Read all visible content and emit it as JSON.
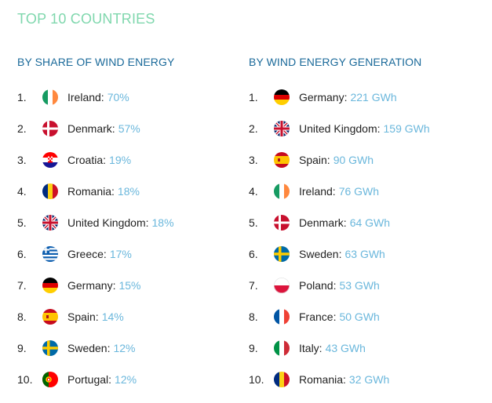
{
  "title": "TOP 10 COUNTRIES",
  "share": {
    "heading": "BY SHARE OF WIND ENERGY",
    "items": [
      {
        "rank": "1.",
        "country": "Ireland:",
        "value": "70%",
        "flag": "ireland"
      },
      {
        "rank": "2.",
        "country": "Denmark:",
        "value": "57%",
        "flag": "denmark"
      },
      {
        "rank": "3.",
        "country": "Croatia:",
        "value": "19%",
        "flag": "croatia"
      },
      {
        "rank": "4.",
        "country": "Romania:",
        "value": "18%",
        "flag": "romania"
      },
      {
        "rank": "5.",
        "country": "United Kingdom:",
        "value": "18%",
        "flag": "uk"
      },
      {
        "rank": "6.",
        "country": "Greece:",
        "value": "17%",
        "flag": "greece"
      },
      {
        "rank": "7.",
        "country": "Germany:",
        "value": "15%",
        "flag": "germany"
      },
      {
        "rank": "8.",
        "country": "Spain:",
        "value": "14%",
        "flag": "spain"
      },
      {
        "rank": "9.",
        "country": "Sweden:",
        "value": "12%",
        "flag": "sweden"
      },
      {
        "rank": "10.",
        "country": "Portugal:",
        "value": "12%",
        "flag": "portugal"
      }
    ]
  },
  "generation": {
    "heading": "BY WIND ENERGY GENERATION",
    "items": [
      {
        "rank": "1.",
        "country": "Germany:",
        "value": "221 GWh",
        "flag": "germany"
      },
      {
        "rank": "2.",
        "country": "United Kingdom:",
        "value": "159 GWh",
        "flag": "uk"
      },
      {
        "rank": "3.",
        "country": "Spain:",
        "value": "90 GWh",
        "flag": "spain"
      },
      {
        "rank": "4.",
        "country": "Ireland:",
        "value": "76 GWh",
        "flag": "ireland"
      },
      {
        "rank": "5.",
        "country": "Denmark:",
        "value": "64 GWh",
        "flag": "denmark"
      },
      {
        "rank": "6.",
        "country": "Sweden:",
        "value": "63 GWh",
        "flag": "sweden"
      },
      {
        "rank": "7.",
        "country": "Poland:",
        "value": "53 GWh",
        "flag": "poland"
      },
      {
        "rank": "8.",
        "country": "France:",
        "value": "50 GWh",
        "flag": "france"
      },
      {
        "rank": "9.",
        "country": "Italy:",
        "value": "43 GWh",
        "flag": "italy"
      },
      {
        "rank": "10.",
        "country": "Romania:",
        "value": "32 GWh",
        "flag": "romania"
      }
    ]
  },
  "colors": {
    "title": "#7fd7ad",
    "heading": "#1b6a9a",
    "value": "#6ab7dc"
  }
}
